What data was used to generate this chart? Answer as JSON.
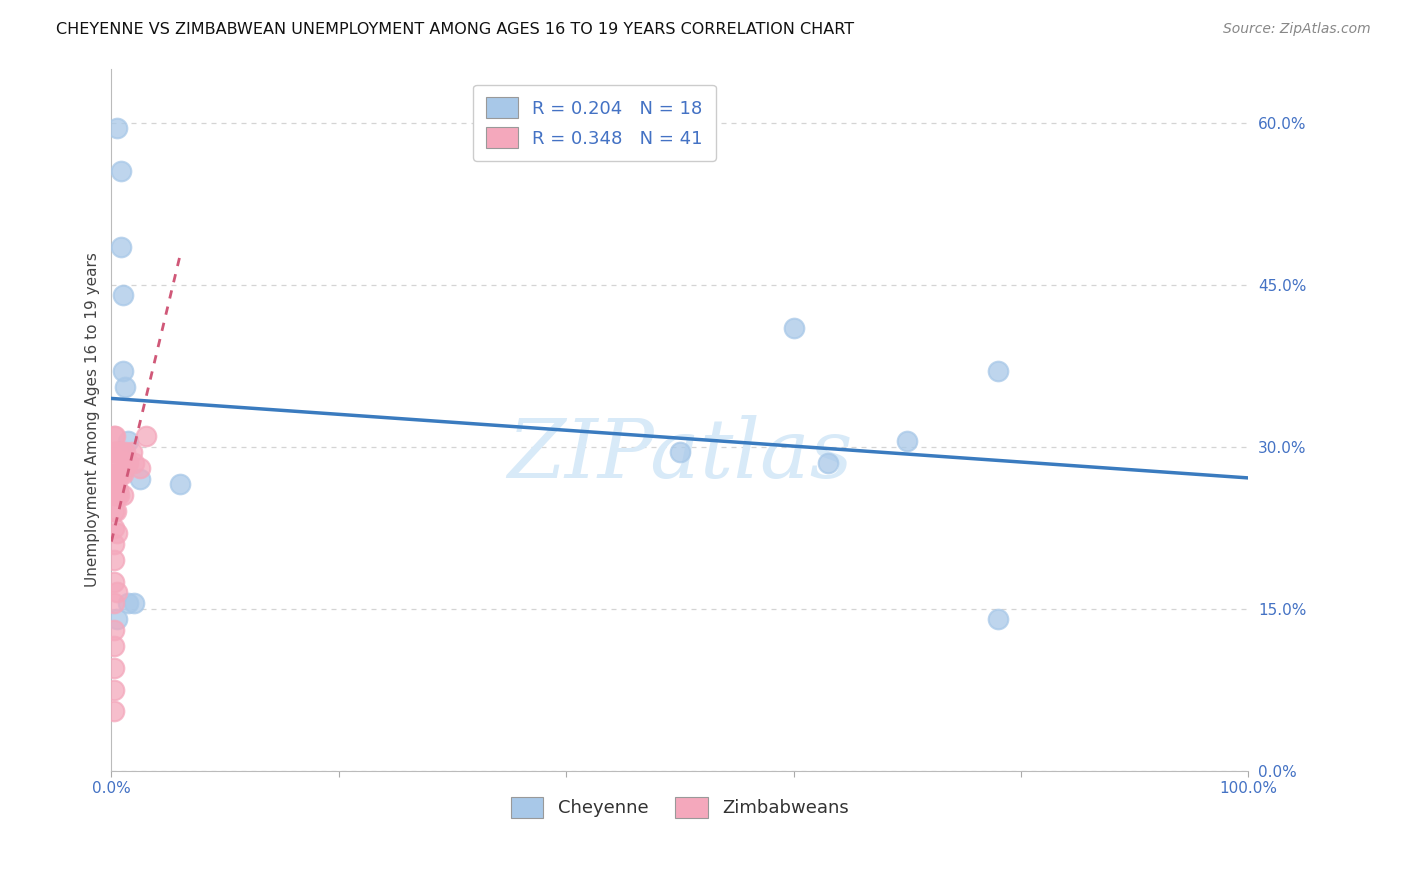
{
  "title": "CHEYENNE VS ZIMBABWEAN UNEMPLOYMENT AMONG AGES 16 TO 19 YEARS CORRELATION CHART",
  "source": "Source: ZipAtlas.com",
  "ylabel": "Unemployment Among Ages 16 to 19 years",
  "watermark": "ZIPatlas",
  "cheyenne_R": 0.204,
  "cheyenne_N": 18,
  "zimbabwean_R": 0.348,
  "zimbabwean_N": 41,
  "cheyenne_color": "#a8c8e8",
  "zimbabwean_color": "#f4a8bc",
  "cheyenne_line_color": "#3a7bbf",
  "zimbabwean_line_color": "#d05878",
  "cheyenne_points_x": [
    0.005,
    0.008,
    0.008,
    0.01,
    0.01,
    0.012,
    0.015,
    0.015,
    0.02,
    0.025,
    0.06,
    0.5,
    0.6,
    0.63,
    0.7,
    0.78,
    0.78,
    0.005
  ],
  "cheyenne_points_y": [
    0.595,
    0.555,
    0.485,
    0.44,
    0.37,
    0.355,
    0.305,
    0.155,
    0.155,
    0.27,
    0.265,
    0.295,
    0.41,
    0.285,
    0.305,
    0.37,
    0.14,
    0.14
  ],
  "zimbabwean_points_x": [
    0.002,
    0.002,
    0.002,
    0.002,
    0.002,
    0.002,
    0.002,
    0.002,
    0.002,
    0.002,
    0.002,
    0.002,
    0.002,
    0.002,
    0.002,
    0.002,
    0.003,
    0.003,
    0.004,
    0.004,
    0.004,
    0.005,
    0.005,
    0.005,
    0.005,
    0.005,
    0.006,
    0.006,
    0.007,
    0.007,
    0.008,
    0.008,
    0.01,
    0.01,
    0.012,
    0.014,
    0.015,
    0.018,
    0.02,
    0.025,
    0.03
  ],
  "zimbabwean_points_y": [
    0.31,
    0.295,
    0.275,
    0.265,
    0.255,
    0.24,
    0.225,
    0.21,
    0.195,
    0.175,
    0.155,
    0.13,
    0.115,
    0.095,
    0.075,
    0.055,
    0.31,
    0.285,
    0.295,
    0.265,
    0.24,
    0.295,
    0.275,
    0.255,
    0.22,
    0.165,
    0.285,
    0.26,
    0.275,
    0.255,
    0.295,
    0.275,
    0.275,
    0.255,
    0.295,
    0.285,
    0.285,
    0.295,
    0.285,
    0.28,
    0.31
  ],
  "xlim": [
    0.0,
    1.0
  ],
  "ylim": [
    0.0,
    0.65
  ],
  "yticks": [
    0.0,
    0.15,
    0.3,
    0.45,
    0.6
  ],
  "ytick_labels": [
    "0.0%",
    "15.0%",
    "30.0%",
    "45.0%",
    "60.0%"
  ],
  "xticks": [
    0.0,
    0.2,
    0.4,
    0.6,
    0.8,
    1.0
  ],
  "xtick_labels": [
    "0.0%",
    "",
    "",
    "",
    "",
    "100.0%"
  ],
  "grid_color": "#d0d0d0",
  "background_color": "#ffffff",
  "title_fontsize": 11.5,
  "axis_label_fontsize": 11,
  "tick_fontsize": 11,
  "legend_fontsize": 13,
  "source_fontsize": 10,
  "watermark_color": "#d8eaf8",
  "watermark_fontsize": 60
}
